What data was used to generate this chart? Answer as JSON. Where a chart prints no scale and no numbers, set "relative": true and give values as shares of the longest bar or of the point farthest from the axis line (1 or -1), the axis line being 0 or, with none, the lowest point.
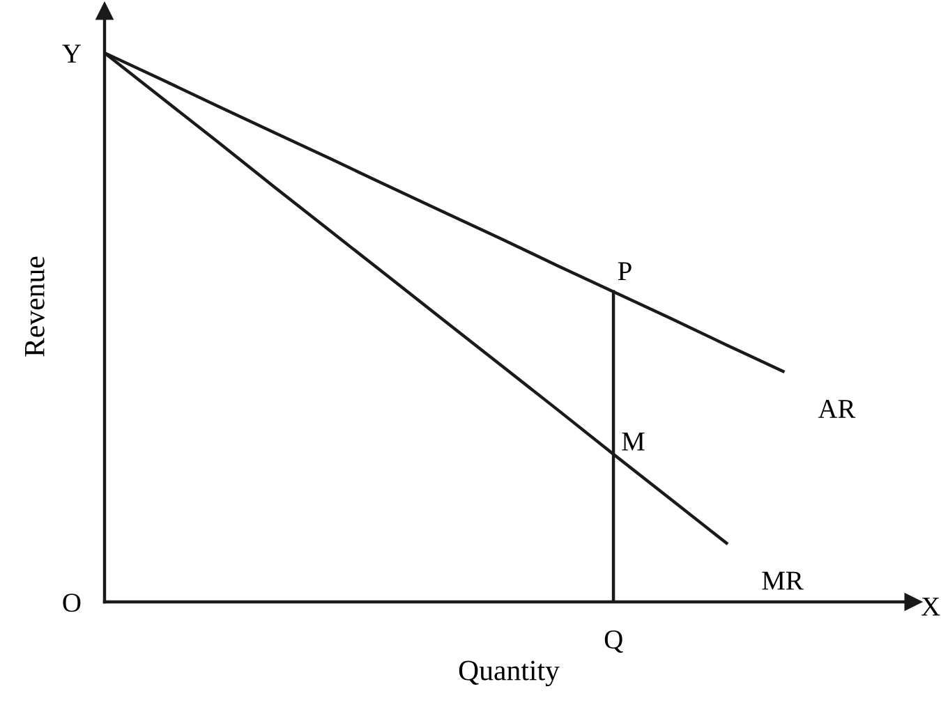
{
  "chart_data": {
    "type": "line",
    "relative": true,
    "xlabel": "Quantity",
    "ylabel": "Revenue",
    "marker": "none",
    "line_style": "solid",
    "color": "#1a1a1a",
    "categories": [
      null,
      null,
      null,
      null,
      null,
      null,
      null,
      null,
      null,
      null,
      null,
      null,
      null
    ],
    "series": [
      {
        "name": "AR",
        "values": [
          1,
          0.952,
          0.903,
          0.855,
          0.807,
          0.758,
          0.71,
          0.662,
          0.613,
          0.565,
          0.517,
          0.468,
          0.42
        ]
      },
      {
        "name": "MR",
        "values": [
          1,
          0.919,
          0.838,
          0.756,
          0.675,
          0.594,
          0.513,
          0.432,
          0.351,
          0.269,
          0.188,
          0.107,
          null
        ]
      }
    ],
    "annotations": [
      "Y",
      "O",
      "X",
      {
        "text": "P",
        "y": 0.565
      },
      "M",
      "Q"
    ]
  }
}
